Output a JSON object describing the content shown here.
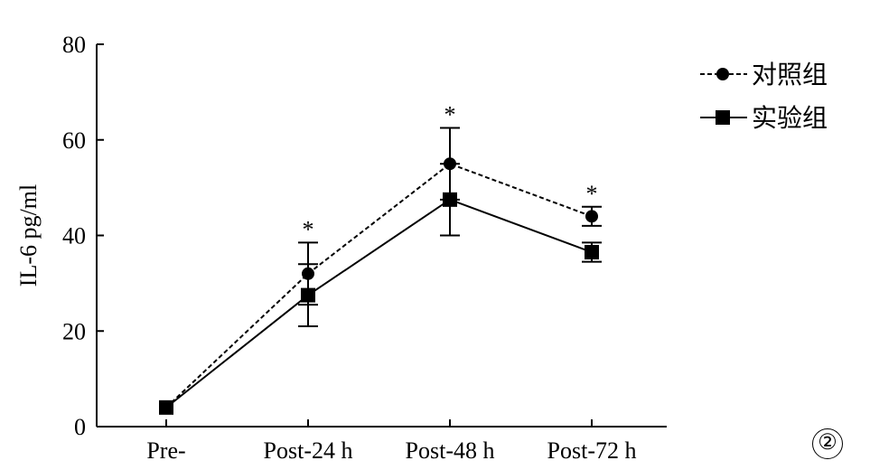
{
  "chart_data": {
    "type": "line",
    "title": "",
    "xlabel": "",
    "ylabel": "IL-6 pg/ml",
    "categories": [
      "Pre-",
      "Post-24 h",
      "Post-48 h",
      "Post-72 h"
    ],
    "ylim": [
      0,
      80
    ],
    "yticks": [
      0,
      20,
      40,
      60,
      80
    ],
    "grid": false,
    "legend_position": "top-right",
    "series": [
      {
        "name": "对照组",
        "marker": "circle",
        "line_style": "dashed",
        "color": "#000000",
        "values": [
          4,
          32,
          55,
          44
        ],
        "error": [
          0,
          6.5,
          7.5,
          2
        ]
      },
      {
        "name": "实验组",
        "marker": "square",
        "line_style": "solid",
        "color": "#000000",
        "values": [
          4,
          27.5,
          47.5,
          36.5
        ],
        "error": [
          0,
          6.5,
          7.5,
          2
        ]
      }
    ],
    "annotations": [
      {
        "category": "Post-24 h",
        "text": "*"
      },
      {
        "category": "Post-48 h",
        "text": "*"
      },
      {
        "category": "Post-72 h",
        "text": "*"
      }
    ]
  },
  "figure_label": "②"
}
